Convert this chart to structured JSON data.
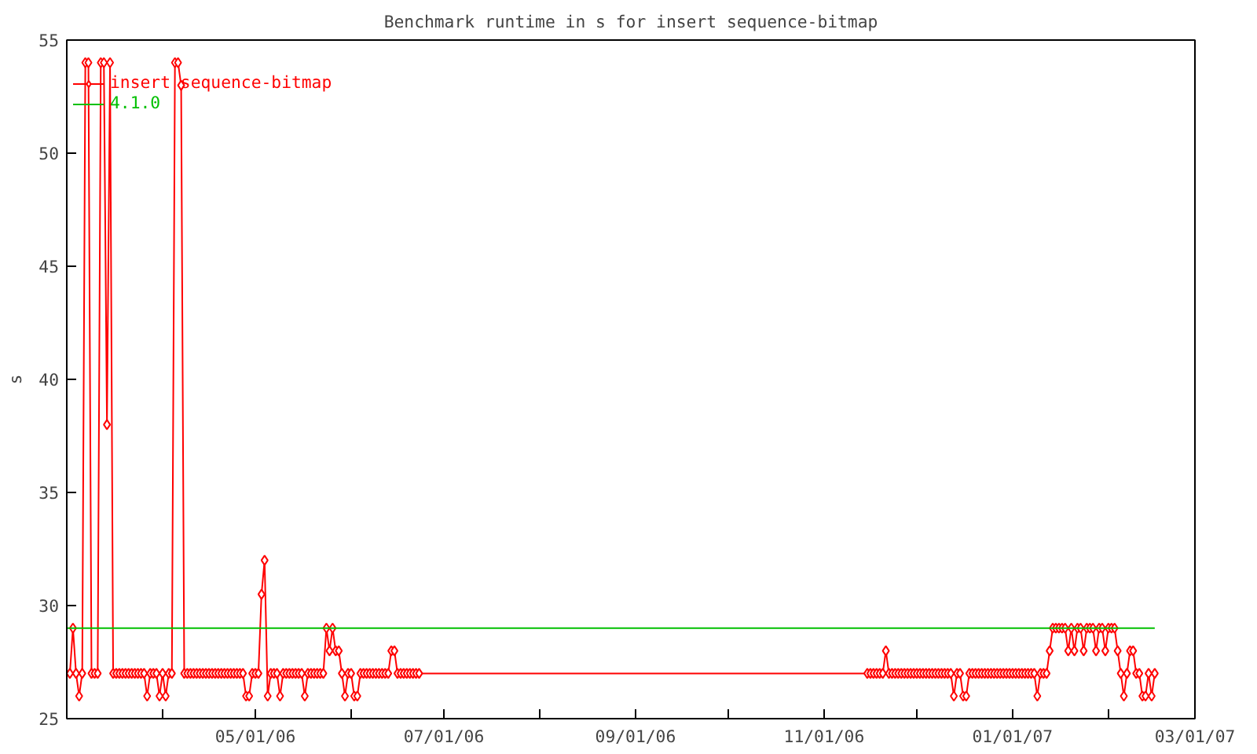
{
  "chart_data": {
    "type": "line",
    "title": "Benchmark runtime in s for insert sequence-bitmap",
    "ylabel": "s",
    "xlim": [
      "2006-03-01",
      "2007-03-01"
    ],
    "xticks": [
      {
        "value": "2006-04-01",
        "label": null
      },
      {
        "value": "2006-05-01",
        "label": "05/01/06"
      },
      {
        "value": "2006-06-01",
        "label": null
      },
      {
        "value": "2006-07-01",
        "label": "07/01/06"
      },
      {
        "value": "2006-08-01",
        "label": null
      },
      {
        "value": "2006-09-01",
        "label": "09/01/06"
      },
      {
        "value": "2006-10-01",
        "label": null
      },
      {
        "value": "2006-11-01",
        "label": "11/01/06"
      },
      {
        "value": "2006-12-01",
        "label": null
      },
      {
        "value": "2007-01-01",
        "label": "01/01/07"
      },
      {
        "value": "2007-02-01",
        "label": null
      },
      {
        "value": "2007-03-01",
        "label": "03/01/07"
      }
    ],
    "ylim": [
      25,
      55
    ],
    "yticks": [
      25,
      30,
      35,
      40,
      45,
      50,
      55
    ],
    "grid": false,
    "legend": "top left",
    "marker": "diamond",
    "series": [
      {
        "name": "insert sequence-bitmap",
        "color": "#ff0000",
        "x": [
          "2006-03-02",
          "2006-03-03",
          "2006-03-04",
          "2006-03-05",
          "2006-03-06",
          "2006-03-07",
          "2006-03-08",
          "2006-03-09",
          "2006-03-10",
          "2006-03-11",
          "2006-03-12",
          "2006-03-13",
          "2006-03-14",
          "2006-03-15",
          "2006-03-16",
          "2006-03-17",
          "2006-03-18",
          "2006-03-19",
          "2006-03-20",
          "2006-03-21",
          "2006-03-22",
          "2006-03-23",
          "2006-03-24",
          "2006-03-25",
          "2006-03-26",
          "2006-03-27",
          "2006-03-28",
          "2006-03-29",
          "2006-03-30",
          "2006-03-31",
          "2006-04-01",
          "2006-04-02",
          "2006-04-03",
          "2006-04-04",
          "2006-04-05",
          "2006-04-06",
          "2006-04-07",
          "2006-04-08",
          "2006-04-09",
          "2006-04-10",
          "2006-04-11",
          "2006-04-12",
          "2006-04-13",
          "2006-04-14",
          "2006-04-15",
          "2006-04-16",
          "2006-04-17",
          "2006-04-18",
          "2006-04-19",
          "2006-04-20",
          "2006-04-21",
          "2006-04-22",
          "2006-04-23",
          "2006-04-24",
          "2006-04-25",
          "2006-04-26",
          "2006-04-27",
          "2006-04-28",
          "2006-04-29",
          "2006-04-30",
          "2006-05-01",
          "2006-05-02",
          "2006-05-03",
          "2006-05-04",
          "2006-05-05",
          "2006-05-06",
          "2006-05-07",
          "2006-05-08",
          "2006-05-09",
          "2006-05-10",
          "2006-05-11",
          "2006-05-12",
          "2006-05-13",
          "2006-05-14",
          "2006-05-15",
          "2006-05-16",
          "2006-05-17",
          "2006-05-18",
          "2006-05-19",
          "2006-05-20",
          "2006-05-21",
          "2006-05-22",
          "2006-05-23",
          "2006-05-24",
          "2006-05-25",
          "2006-05-26",
          "2006-05-27",
          "2006-05-28",
          "2006-05-29",
          "2006-05-30",
          "2006-05-31",
          "2006-06-01",
          "2006-06-02",
          "2006-06-03",
          "2006-06-04",
          "2006-06-05",
          "2006-06-06",
          "2006-06-07",
          "2006-06-08",
          "2006-06-09",
          "2006-06-10",
          "2006-06-11",
          "2006-06-12",
          "2006-06-13",
          "2006-06-14",
          "2006-06-15",
          "2006-06-16",
          "2006-06-17",
          "2006-06-18",
          "2006-06-19",
          "2006-06-20",
          "2006-06-21",
          "2006-06-22",
          "2006-06-23",
          "2006-11-15",
          "2006-11-16",
          "2006-11-17",
          "2006-11-18",
          "2006-11-19",
          "2006-11-20",
          "2006-11-21",
          "2006-11-22",
          "2006-11-23",
          "2006-11-24",
          "2006-11-25",
          "2006-11-26",
          "2006-11-27",
          "2006-11-28",
          "2006-11-29",
          "2006-11-30",
          "2006-12-01",
          "2006-12-02",
          "2006-12-03",
          "2006-12-04",
          "2006-12-05",
          "2006-12-06",
          "2006-12-07",
          "2006-12-08",
          "2006-12-09",
          "2006-12-10",
          "2006-12-11",
          "2006-12-12",
          "2006-12-13",
          "2006-12-14",
          "2006-12-15",
          "2006-12-16",
          "2006-12-17",
          "2006-12-18",
          "2006-12-19",
          "2006-12-20",
          "2006-12-21",
          "2006-12-22",
          "2006-12-23",
          "2006-12-24",
          "2006-12-25",
          "2006-12-26",
          "2006-12-27",
          "2006-12-28",
          "2006-12-29",
          "2006-12-30",
          "2006-12-31",
          "2007-01-01",
          "2007-01-02",
          "2007-01-03",
          "2007-01-04",
          "2007-01-05",
          "2007-01-06",
          "2007-01-07",
          "2007-01-08",
          "2007-01-09",
          "2007-01-10",
          "2007-01-11",
          "2007-01-12",
          "2007-01-13",
          "2007-01-14",
          "2007-01-15",
          "2007-01-16",
          "2007-01-17",
          "2007-01-18",
          "2007-01-19",
          "2007-01-20",
          "2007-01-21",
          "2007-01-22",
          "2007-01-23",
          "2007-01-24",
          "2007-01-25",
          "2007-01-26",
          "2007-01-27",
          "2007-01-28",
          "2007-01-29",
          "2007-01-30",
          "2007-01-31",
          "2007-02-01",
          "2007-02-02",
          "2007-02-03",
          "2007-02-04",
          "2007-02-05",
          "2007-02-06",
          "2007-02-07",
          "2007-02-08",
          "2007-02-09",
          "2007-02-10",
          "2007-02-11",
          "2007-02-12",
          "2007-02-13",
          "2007-02-14",
          "2007-02-15",
          "2007-02-16"
        ],
        "values": [
          27,
          29,
          27,
          26,
          27,
          54,
          54,
          27,
          27,
          27,
          54,
          54,
          38,
          54,
          27,
          27,
          27,
          27,
          27,
          27,
          27,
          27,
          27,
          27,
          27,
          26,
          27,
          27,
          27,
          26,
          27,
          26,
          27,
          27,
          54,
          54,
          53,
          27,
          27,
          27,
          27,
          27,
          27,
          27,
          27,
          27,
          27,
          27,
          27,
          27,
          27,
          27,
          27,
          27,
          27,
          27,
          27,
          26,
          26,
          27,
          27,
          27,
          30.5,
          32,
          26,
          27,
          27,
          27,
          26,
          27,
          27,
          27,
          27,
          27,
          27,
          27,
          26,
          27,
          27,
          27,
          27,
          27,
          27,
          29,
          28,
          29,
          28,
          28,
          27,
          26,
          27,
          27,
          26,
          26,
          27,
          27,
          27,
          27,
          27,
          27,
          27,
          27,
          27,
          27,
          28,
          28,
          27,
          27,
          27,
          27,
          27,
          27,
          27,
          27,
          27,
          27,
          27,
          27,
          27,
          27,
          28,
          27,
          27,
          27,
          27,
          27,
          27,
          27,
          27,
          27,
          27,
          27,
          27,
          27,
          27,
          27,
          27,
          27,
          27,
          27,
          27,
          27,
          26,
          27,
          27,
          26,
          26,
          27,
          27,
          27,
          27,
          27,
          27,
          27,
          27,
          27,
          27,
          27,
          27,
          27,
          27,
          27,
          27,
          27,
          27,
          27,
          27,
          27,
          27,
          26,
          27,
          27,
          27,
          28,
          29,
          29,
          29,
          29,
          29,
          28,
          29,
          28,
          29,
          29,
          28,
          29,
          29,
          29,
          28,
          29,
          29,
          28,
          29,
          29,
          29,
          28,
          27,
          26,
          27,
          28,
          28,
          27,
          27,
          26,
          26,
          27,
          26,
          27
        ]
      },
      {
        "name": "4.1.0",
        "color": "#00c000",
        "marker": "none",
        "x": [
          "2006-03-01",
          "2007-02-16"
        ],
        "values": [
          29,
          29
        ]
      }
    ]
  }
}
